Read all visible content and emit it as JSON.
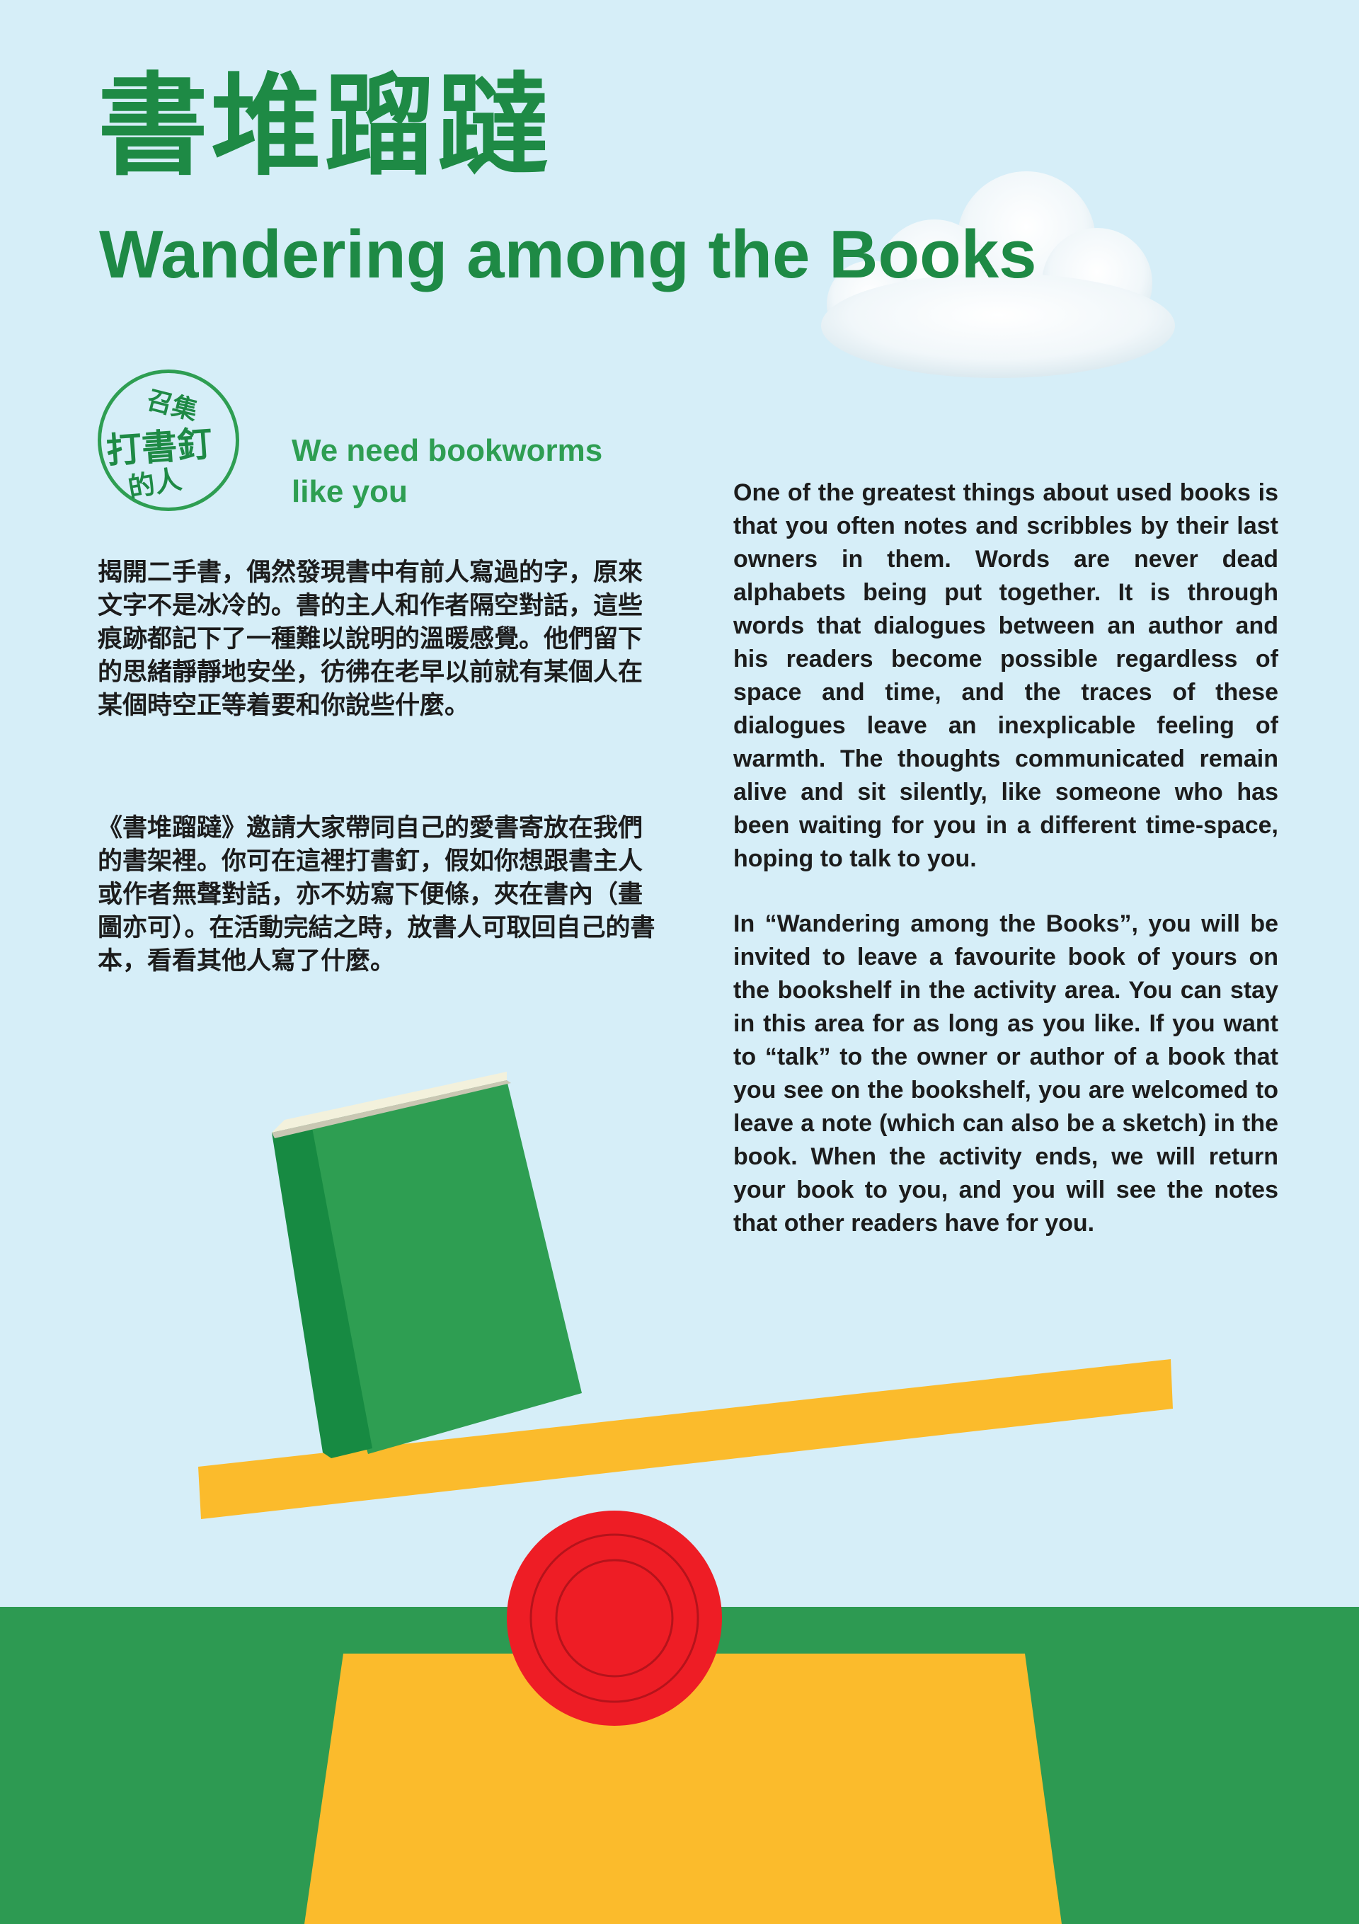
{
  "title": {
    "zh": "書堆蹓躂",
    "en": "Wandering among the Books"
  },
  "stamp": {
    "line1": "召集",
    "line2": "打書釘",
    "line3": "的人"
  },
  "tagline": "We need bookworms like you",
  "body_zh": {
    "p1": "揭開二手書，偶然發現書中有前人寫過的字，原來文字不是冰冷的。書的主人和作者隔空對話，這些痕跡都記下了一種難以說明的溫暖感覺。他們留下的思緒靜靜地安坐，彷彿在老早以前就有某個人在某個時空正等着要和你說些什麼。",
    "p2": "《書堆蹓躂》邀請大家帶同自己的愛書寄放在我們的書架裡。你可在這裡打書釘，假如你想跟書主人或作者無聲對話，亦不妨寫下便條，夾在書內（畫圖亦可）。在活動完結之時，放書人可取回自己的書本，看看其他人寫了什麼。"
  },
  "body_en": {
    "p1": "One of the greatest things about used books is that you often notes and scribbles by their last owners in them. Words are never dead alphabets being put together. It is through words that dialogues between an author and his readers become possible regardless of space and time, and the traces of these dialogues leave an inexplicable feeling of warmth. The thoughts communicated remain alive and sit silently, like someone who has been waiting for you in a different time-space, hoping to talk to you.",
    "p2": "In “Wandering among the Books”, you will be invited to leave a favourite book of yours on the bookshelf in the activity area. You can stay in this area for as long as you like. If you want to “talk” to the owner or author of a book that you see on the bookshelf, you are welcomed to leave a note (which can also be a sketch) in the book. When the activity ends, we will return your book to you, and you will see the notes that other readers have for you."
  },
  "colors": {
    "sky": "#d6eef8",
    "brand_green": "#1e8a45",
    "grass": "#2d9a52",
    "seesaw_yellow": "#fbbb2c",
    "ball_red": "#ee1d25",
    "book_green": "#2e9e52"
  }
}
